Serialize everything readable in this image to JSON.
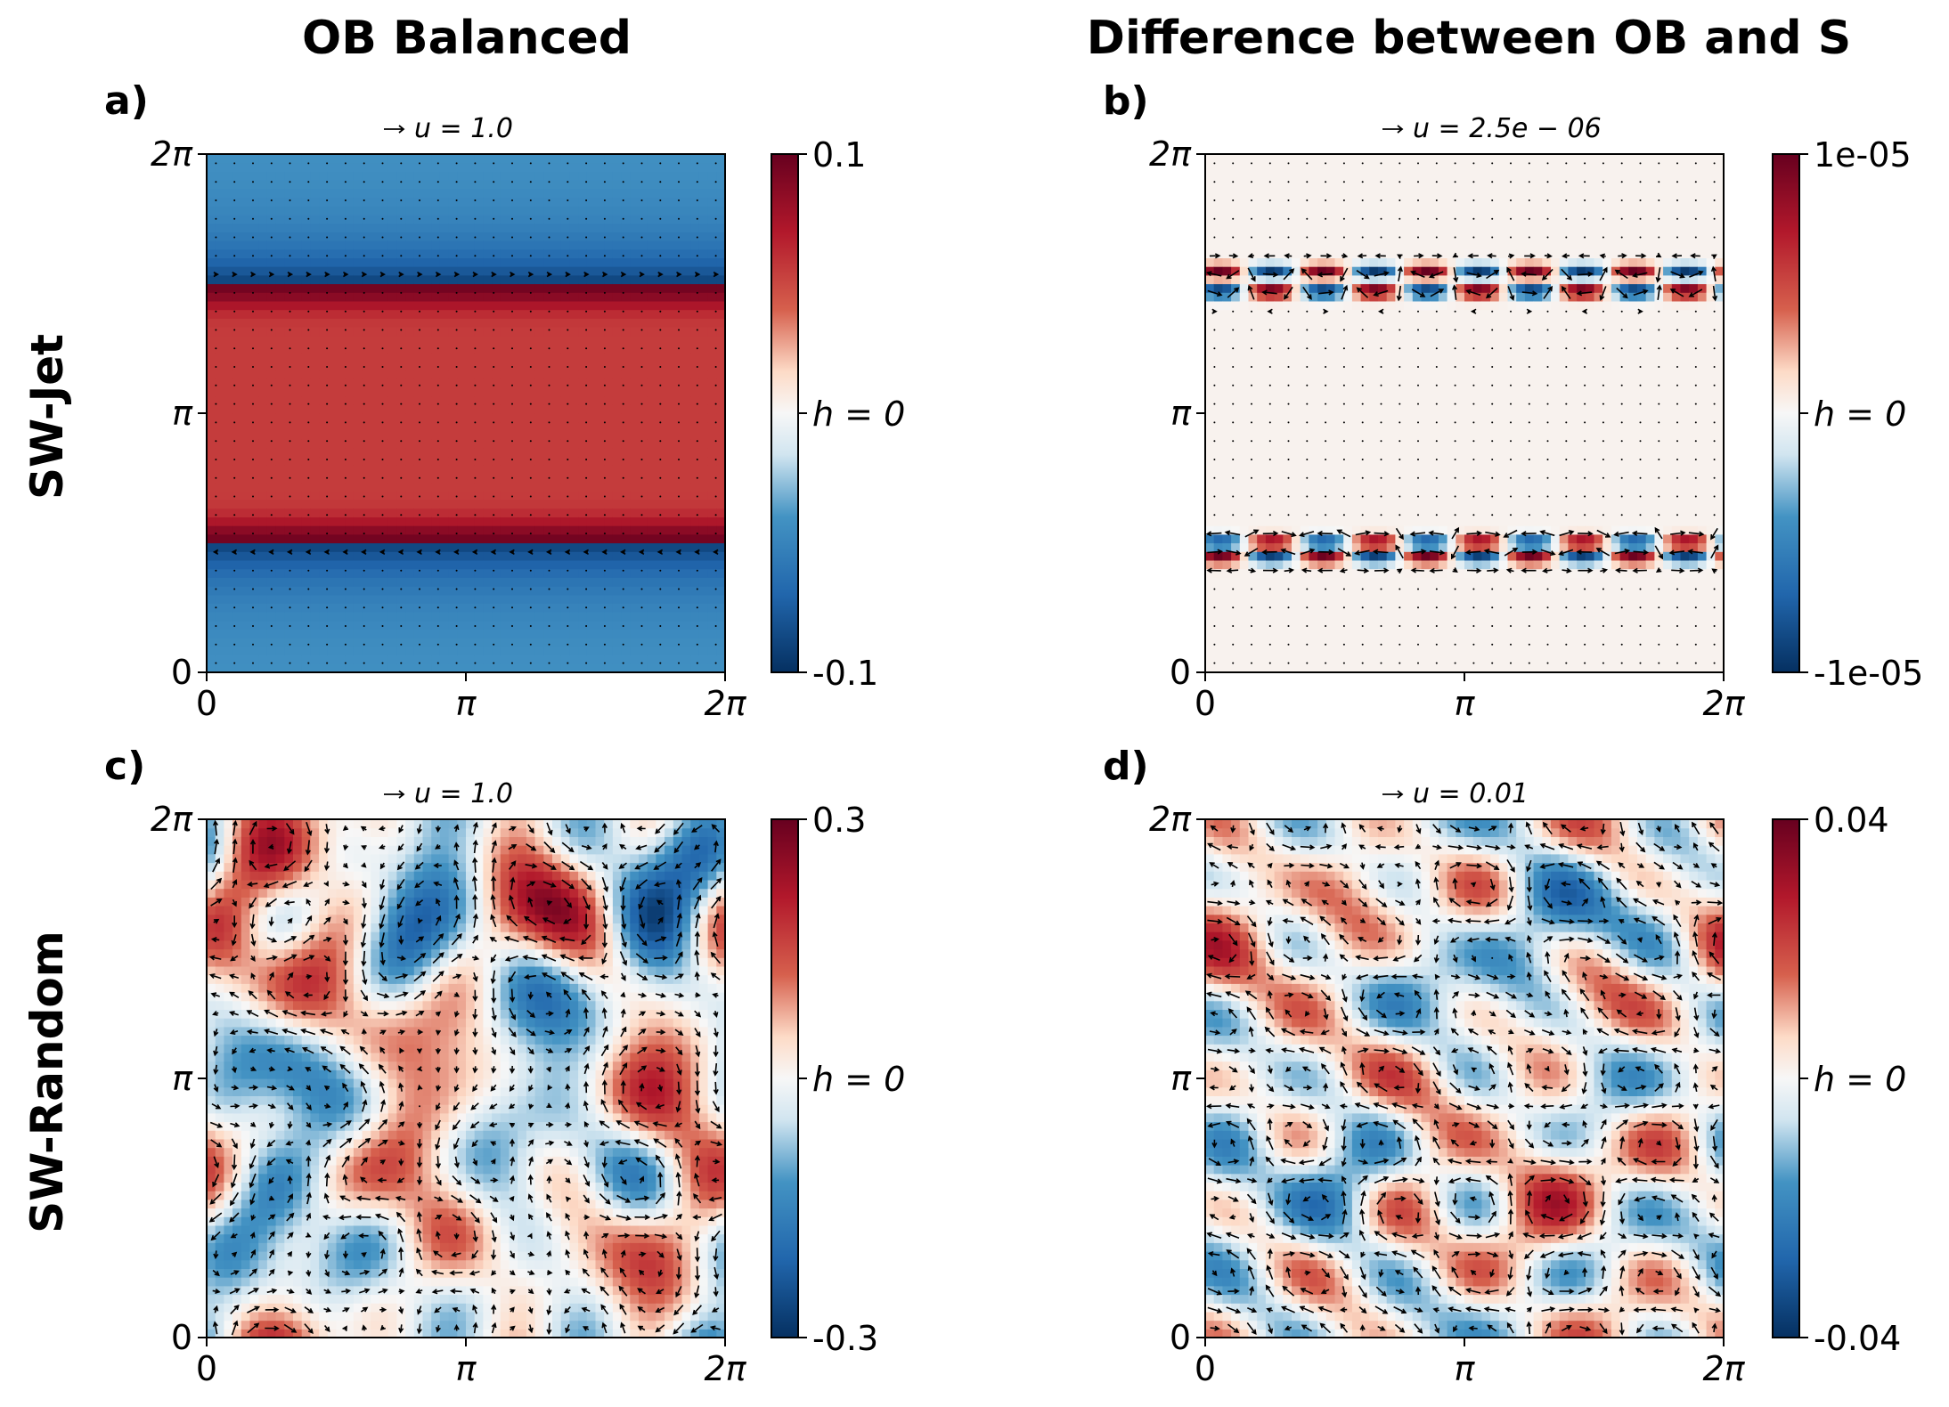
{
  "column_titles": [
    "OB Balanced",
    "Difference between OB and S"
  ],
  "row_titles": [
    "SW-Jet",
    "SW-Random"
  ],
  "colormap": {
    "low": "#053061",
    "mid": "#f7f7f7",
    "high": "#67001f"
  },
  "chart_data": [
    {
      "panel_label": "a)",
      "type": "heatmap",
      "field": "jet",
      "quiver_key": "u = 1.0",
      "xticks": [
        "0",
        "π",
        "2π"
      ],
      "yticks": [
        "0",
        "π",
        "2π"
      ],
      "xlim": [
        0,
        6.2832
      ],
      "ylim": [
        0,
        6.2832
      ],
      "colorbar": {
        "min": -0.1,
        "max": 0.1,
        "labels": [
          "0.1",
          "h = 0",
          "-0.1"
        ]
      },
      "jet_rows_y": [
        1.55,
        4.73
      ],
      "jet_directions": [
        "left",
        "right"
      ]
    },
    {
      "panel_label": "b)",
      "type": "heatmap",
      "field": "jet-diff",
      "quiver_key": "u = 2.5e − 06",
      "xticks": [
        "0",
        "π",
        "2π"
      ],
      "yticks": [
        "0",
        "π",
        "2π"
      ],
      "xlim": [
        0,
        6.2832
      ],
      "ylim": [
        0,
        6.2832
      ],
      "colorbar": {
        "min": -1e-05,
        "max": 1e-05,
        "labels": [
          "1e-05",
          "h = 0",
          "-1e-05"
        ]
      },
      "blob_rows_y": [
        1.41,
        1.57,
        4.63,
        4.86
      ],
      "blob_count_per_row": 10
    },
    {
      "panel_label": "c)",
      "type": "heatmap",
      "field": "random",
      "quiver_key": "u = 1.0",
      "xticks": [
        "0",
        "π",
        "2π"
      ],
      "yticks": [
        "0",
        "π",
        "2π"
      ],
      "xlim": [
        0,
        6.2832
      ],
      "ylim": [
        0,
        6.2832
      ],
      "colorbar": {
        "min": -0.3,
        "max": 0.3,
        "labels": [
          "0.3",
          "h = 0",
          "-0.3"
        ]
      }
    },
    {
      "panel_label": "d)",
      "type": "heatmap",
      "field": "random-diff",
      "quiver_key": "u = 0.01",
      "xticks": [
        "0",
        "π",
        "2π"
      ],
      "yticks": [
        "0",
        "π",
        "2π"
      ],
      "xlim": [
        0,
        6.2832
      ],
      "ylim": [
        0,
        6.2832
      ],
      "colorbar": {
        "min": -0.04,
        "max": 0.04,
        "labels": [
          "0.04",
          "h = 0",
          "-0.04"
        ]
      }
    }
  ]
}
